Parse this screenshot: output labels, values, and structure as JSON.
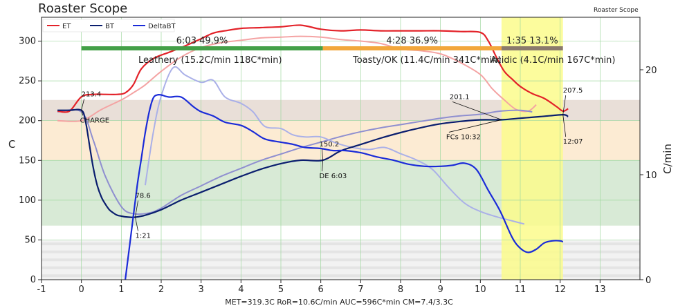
{
  "app": {
    "title": "Roaster Scope",
    "corner_label": "Roaster Scope",
    "footer": "MET=319.3C   RoR=10.6C/min   AUC=596C*min   CM=7.4/3.3C"
  },
  "chart_data": {
    "type": "line",
    "title": "Roaster Scope",
    "xlabel": "",
    "ylabel": "C",
    "y2label": "C/min",
    "xlim": [
      -1,
      14
    ],
    "ylim": [
      0,
      330
    ],
    "y2lim": [
      0,
      25
    ],
    "xticks": [
      "-1",
      "0",
      "1",
      "2",
      "3",
      "4",
      "5",
      "6",
      "7",
      "8",
      "9",
      "10",
      "11",
      "12",
      "13"
    ],
    "yticks": [
      "0",
      "50",
      "100",
      "150",
      "200",
      "250",
      "300"
    ],
    "y2ticks": [
      "0",
      "10",
      "20"
    ],
    "legend": {
      "placement": "top-left",
      "entries": [
        "ET",
        "BT",
        "DeltaBT"
      ]
    },
    "series": [
      {
        "name": "ET",
        "color": "#e32229",
        "axis": "left",
        "x": [
          -0.6,
          -0.3,
          0,
          0.3,
          0.6,
          0.9,
          1.1,
          1.3,
          1.5,
          1.8,
          2.2,
          2.6,
          3,
          3.3,
          3.6,
          4,
          4.5,
          5,
          5.5,
          6,
          6.5,
          7,
          7.5,
          8,
          8.5,
          9,
          9.5,
          10,
          10.2,
          10.4,
          10.6,
          10.8,
          11,
          11.3,
          11.6,
          11.9,
          12.07,
          12.2
        ],
        "y": [
          212,
          212,
          230,
          233,
          233,
          233,
          235,
          245,
          265,
          278,
          286,
          294,
          303,
          310,
          313,
          316,
          317,
          318,
          320,
          315,
          313,
          314,
          313,
          313,
          313,
          313,
          312,
          311,
          300,
          280,
          262,
          252,
          243,
          234,
          228,
          218,
          212,
          215
        ]
      },
      {
        "name": "BT",
        "color": "#0a1e6e",
        "axis": "left",
        "x": [
          -0.6,
          -0.3,
          0,
          0.1,
          0.2,
          0.3,
          0.4,
          0.5,
          0.6,
          0.7,
          0.8,
          0.9,
          1.0,
          1.1,
          1.2,
          1.35,
          1.6,
          2,
          2.5,
          3,
          3.5,
          4,
          4.5,
          5,
          5.5,
          6.05,
          6.5,
          7,
          7.5,
          8,
          8.5,
          9,
          9.5,
          10,
          10.53,
          11,
          11.5,
          12.07,
          12.2
        ],
        "y": [
          213,
          213,
          213,
          200,
          170,
          140,
          118,
          104,
          95,
          88,
          84,
          81,
          80,
          79,
          78.6,
          78.6,
          81,
          88,
          100,
          110,
          120,
          130,
          139,
          146,
          150.2,
          150.2,
          162,
          170,
          178,
          185,
          191,
          196,
          199,
          201,
          201.1,
          203,
          205,
          207.5,
          205
        ]
      },
      {
        "name": "DeltaBT",
        "color": "#1a2bd8",
        "axis": "right",
        "x": [
          1.1,
          1.2,
          1.3,
          1.4,
          1.5,
          1.6,
          1.7,
          1.8,
          1.9,
          2,
          2.2,
          2.5,
          2.8,
          3,
          3.3,
          3.6,
          4,
          4.3,
          4.6,
          5,
          5.3,
          5.6,
          6,
          6.3,
          6.6,
          7,
          7.4,
          7.8,
          8.2,
          8.6,
          9,
          9.3,
          9.6,
          9.9,
          10.2,
          10.5,
          10.8,
          11,
          11.2,
          11.4,
          11.6,
          11.8,
          12,
          12.07
        ],
        "y": [
          0,
          3,
          6,
          9,
          11.5,
          14,
          16,
          17.3,
          17.6,
          17.6,
          17.4,
          17.4,
          16.5,
          16,
          15.6,
          15,
          14.7,
          14.1,
          13.4,
          13.1,
          12.9,
          12.6,
          12.5,
          12.3,
          12.3,
          12.1,
          11.7,
          11.4,
          11.0,
          10.8,
          10.8,
          10.9,
          11.1,
          10.5,
          8.5,
          6.5,
          4,
          3,
          2.6,
          2.9,
          3.5,
          3.7,
          3.7,
          3.6
        ]
      }
    ],
    "background_curves": [
      {
        "color": "#f4a3a3",
        "x": [
          -0.6,
          0,
          0.5,
          1,
          1.3,
          1.6,
          2,
          2.5,
          3,
          3.5,
          4,
          4.5,
          5,
          5.5,
          6,
          6.5,
          7,
          7.5,
          8,
          8.5,
          9,
          9.5,
          10,
          10.3,
          10.6,
          10.9,
          11.2,
          11.4
        ],
        "y": [
          200,
          200,
          214,
          226,
          235,
          245,
          262,
          280,
          292,
          298,
          301,
          304,
          305,
          306,
          305,
          302,
          300,
          297,
          290,
          288,
          284,
          273,
          258,
          240,
          226,
          214,
          212,
          220
        ]
      },
      {
        "color": "#8f8fd0",
        "x": [
          -0.6,
          0,
          0.3,
          0.6,
          1,
          1.3,
          1.7,
          2,
          2.5,
          3,
          3.5,
          4,
          4.5,
          5,
          5.5,
          6,
          6.5,
          7,
          7.5,
          8,
          8.5,
          9,
          9.5,
          10,
          10.5,
          11,
          11.3
        ],
        "y": [
          211,
          211,
          175,
          130,
          92,
          83,
          84,
          90,
          106,
          118,
          130,
          140,
          150,
          158,
          166,
          173,
          180,
          186,
          191,
          195,
          199,
          203,
          206,
          208,
          212,
          213,
          211
        ]
      },
      {
        "color": "#aab0e8",
        "x": [
          1.6,
          1.8,
          2,
          2.3,
          2.6,
          3,
          3.3,
          3.6,
          4,
          4.3,
          4.6,
          5,
          5.3,
          5.6,
          6,
          6.4,
          6.8,
          7.2,
          7.6,
          8,
          8.4,
          8.8,
          9.2,
          9.6,
          10,
          10.4,
          10.8,
          11.1
        ],
        "y": [
          9,
          14,
          17.5,
          20.2,
          19.5,
          18.8,
          19,
          17.4,
          16.8,
          16,
          14.6,
          14.4,
          13.8,
          13.6,
          13.6,
          13,
          12.6,
          12.4,
          12.6,
          12,
          11.4,
          10.5,
          8.8,
          7.3,
          6.5,
          6.0,
          5.6,
          5.3
        ]
      }
    ],
    "bands": [
      {
        "y_from": 200,
        "y_to": 226,
        "color": "#e9dfd8"
      },
      {
        "y_from": 150,
        "y_to": 200,
        "color": "#fcebd3"
      },
      {
        "y_from": 68,
        "y_to": 150,
        "color": "#d8ead6"
      },
      {
        "y_from": 0,
        "y_to": 50,
        "color": "#f2f2f2"
      }
    ],
    "highlight_region": {
      "x_from": 10.53,
      "x_to": 12.07,
      "color": "#fbfb8c"
    },
    "phases": [
      {
        "label": "6:03  49.9%",
        "x_from": 0,
        "x_to": 6.05,
        "color": "#43a047",
        "sublabel": "Leathery (15.2C/min  118C*min)"
      },
      {
        "label": "4:28  36.9%",
        "x_from": 6.05,
        "x_to": 10.53,
        "color": "#f2a73b",
        "sublabel": "Toasty/OK (11.4C/min  341C*min)"
      },
      {
        "label": "1:35  13.1%",
        "x_from": 10.53,
        "x_to": 12.07,
        "color": "#8a7a6c",
        "sublabel": "Acidic (4.1C/min  167C*min)"
      }
    ],
    "annotations": [
      {
        "text": "213.4",
        "x": 0,
        "y": 213.4
      },
      {
        "text": "CHARGE",
        "x": 0,
        "y": 213.4
      },
      {
        "text": "78.6",
        "x": 1.35,
        "y": 78.6
      },
      {
        "text": "1:21",
        "x": 1.35,
        "y": 78.6
      },
      {
        "text": "150.2",
        "x": 6.05,
        "y": 150.2
      },
      {
        "text": "DE 6:03",
        "x": 6.05,
        "y": 150.2
      },
      {
        "text": "201.1",
        "x": 10.53,
        "y": 201.1
      },
      {
        "text": "FCs 10:32",
        "x": 10.53,
        "y": 201.1
      },
      {
        "text": "207.5",
        "x": 12.07,
        "y": 207.5
      },
      {
        "text": "12:07",
        "x": 12.07,
        "y": 207.5
      }
    ]
  }
}
